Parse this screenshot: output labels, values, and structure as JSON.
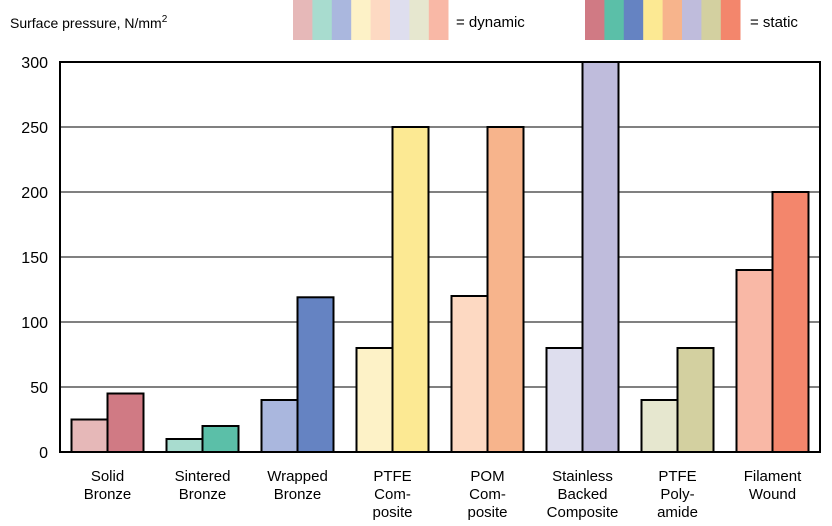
{
  "chart_data": {
    "type": "bar",
    "ylabel": "Surface pressure, N/mm",
    "ylabel_sup": "2",
    "ylim": [
      0,
      300
    ],
    "yticks": [
      0,
      50,
      100,
      150,
      200,
      250,
      300
    ],
    "grid": true,
    "legend": {
      "dynamic_label": "= dynamic",
      "static_label": "= static",
      "position": "top"
    },
    "categories": [
      [
        "Solid",
        "Bronze"
      ],
      [
        "Sintered",
        "Bronze"
      ],
      [
        "Wrapped",
        "Bronze"
      ],
      [
        "PTFE",
        "Com-",
        "posite"
      ],
      [
        "POM",
        "Com-",
        "posite"
      ],
      [
        "Stainless",
        "Backed",
        "Composite"
      ],
      [
        "PTFE",
        "Poly-",
        "amide"
      ],
      [
        "Filament",
        "Wound"
      ]
    ],
    "series": [
      {
        "name": "= dynamic",
        "values": [
          25,
          10,
          40,
          80,
          120,
          80,
          40,
          140
        ]
      },
      {
        "name": "= static",
        "values": [
          45,
          20,
          119,
          250,
          250,
          300,
          80,
          200
        ]
      }
    ],
    "colors": {
      "dynamic": [
        "#e6b8b8",
        "#a8dccf",
        "#aab7de",
        "#fdf2c7",
        "#fdd9c2",
        "#dedeee",
        "#e6e7cf",
        "#f9b8a6"
      ],
      "static": [
        "#d07a84",
        "#5bbfa8",
        "#6583c2",
        "#fce993",
        "#f7b48c",
        "#bfbcdc",
        "#d3d0a0",
        "#f3866c"
      ]
    }
  }
}
